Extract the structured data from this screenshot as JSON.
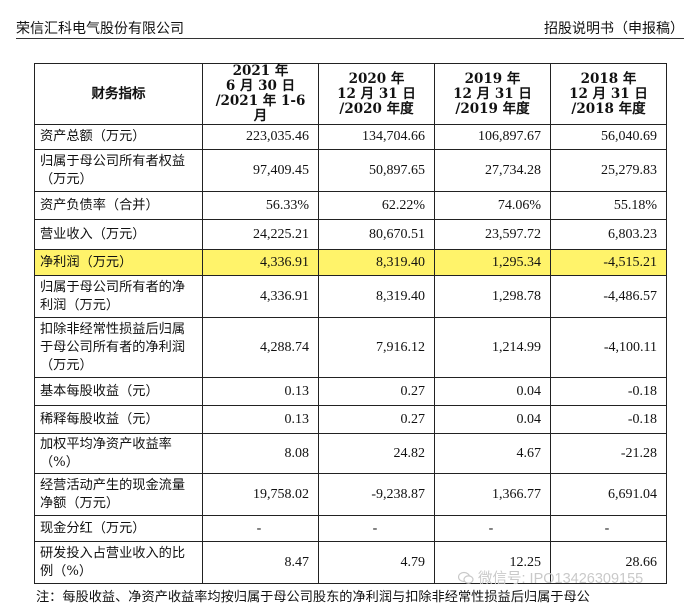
{
  "header": {
    "company": "荣信汇科电气股份有限公司",
    "document": "招股说明书（申报稿）"
  },
  "table": {
    "columns": [
      {
        "l1": "财务指标"
      },
      {
        "l1": "2021 年",
        "l2": "6 月 30 日",
        "l3": "/2021 年 1-6 月"
      },
      {
        "l1": "2020 年",
        "l2": "12 月 31 日",
        "l3": "/2020 年度"
      },
      {
        "l1": "2019 年",
        "l2": "12 月 31 日",
        "l3": "/2019 年度"
      },
      {
        "l1": "2018 年",
        "l2": "12 月 31 日",
        "l3": "/2018 年度"
      }
    ],
    "rows": [
      {
        "label": "资产总额（万元）",
        "v": [
          "223,035.46",
          "134,704.66",
          "106,897.67",
          "56,040.69"
        ]
      },
      {
        "label": "归属于母公司所有者权益（万元）",
        "v": [
          "97,409.45",
          "50,897.65",
          "27,734.28",
          "25,279.83"
        ]
      },
      {
        "label": "资产负债率（合并）",
        "v": [
          "56.33%",
          "62.22%",
          "74.06%",
          "55.18%"
        ]
      },
      {
        "label": "营业收入（万元）",
        "v": [
          "24,225.21",
          "80,670.51",
          "23,597.72",
          "6,803.23"
        ]
      },
      {
        "label": "净利润（万元）",
        "v": [
          "4,336.91",
          "8,319.40",
          "1,295.34",
          "-4,515.21"
        ]
      },
      {
        "label": "归属于母公司所有者的净利润（万元）",
        "v": [
          "4,336.91",
          "8,319.40",
          "1,298.78",
          "-4,486.57"
        ]
      },
      {
        "label": "扣除非经常性损益后归属于母公司所有者的净利润（万元）",
        "v": [
          "4,288.74",
          "7,916.12",
          "1,214.99",
          "-4,100.11"
        ]
      },
      {
        "label": "基本每股收益（元）",
        "v": [
          "0.13",
          "0.27",
          "0.04",
          "-0.18"
        ]
      },
      {
        "label": "稀释每股收益（元）",
        "v": [
          "0.13",
          "0.27",
          "0.04",
          "-0.18"
        ]
      },
      {
        "label": "加权平均净资产收益率（%）",
        "v": [
          "8.08",
          "24.82",
          "4.67",
          "-21.28"
        ]
      },
      {
        "label": "经营活动产生的现金流量净额（万元）",
        "v": [
          "19,758.02",
          "-9,238.87",
          "1,366.77",
          "6,691.04"
        ]
      },
      {
        "label": "现金分红（万元）",
        "v": [
          "-",
          "-",
          "-",
          "-"
        ]
      },
      {
        "label": "研发投入占营业收入的比例（%）",
        "v": [
          "8.47",
          "4.79",
          "12.25",
          "28.66"
        ]
      }
    ]
  },
  "note": "注：每股收益、净资产收益率均按归属于母公司股东的净利润与扣除非经常性损益后归属于母公",
  "watermark": "微信号: IPO13426309155",
  "colors": {
    "highlight": "#fff36a"
  }
}
